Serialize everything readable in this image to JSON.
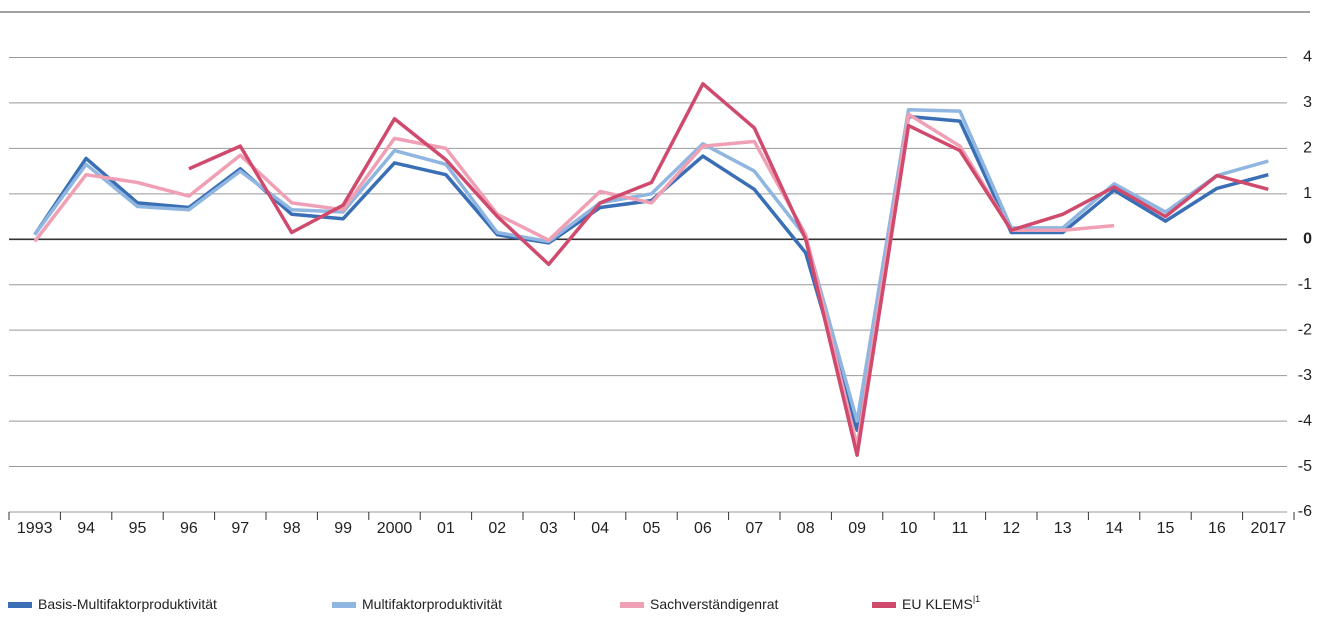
{
  "chart_data": {
    "type": "line",
    "categories": [
      "1993",
      "94",
      "95",
      "96",
      "97",
      "98",
      "99",
      "2000",
      "01",
      "02",
      "03",
      "04",
      "05",
      "06",
      "07",
      "08",
      "09",
      "10",
      "11",
      "12",
      "13",
      "14",
      "15",
      "16",
      "2017"
    ],
    "series": [
      {
        "name": "Basis-Multifaktorproduktivität",
        "color": "#3a6fb5",
        "values": [
          0.1,
          1.78,
          0.8,
          0.7,
          1.55,
          0.55,
          0.45,
          1.68,
          1.42,
          0.1,
          -0.08,
          0.7,
          0.85,
          1.83,
          1.1,
          -0.3,
          -4.2,
          2.7,
          2.6,
          0.15,
          0.15,
          1.08,
          0.4,
          1.12,
          1.42
        ]
      },
      {
        "name": "Multifaktorproduktivität",
        "color": "#8fb6e0",
        "values": [
          0.1,
          1.65,
          0.72,
          0.65,
          1.5,
          0.65,
          0.6,
          1.95,
          1.65,
          0.15,
          -0.05,
          0.8,
          1.0,
          2.1,
          1.5,
          0.05,
          -4.0,
          2.85,
          2.82,
          0.25,
          0.25,
          1.22,
          0.6,
          1.4,
          1.72
        ]
      },
      {
        "name": "Sachverständigenrat",
        "color": "#f0a0b4",
        "values": [
          -0.05,
          1.42,
          1.25,
          0.95,
          1.85,
          0.8,
          0.65,
          2.22,
          2.0,
          0.55,
          -0.02,
          1.05,
          0.8,
          2.05,
          2.15,
          0.1,
          -4.55,
          2.75,
          2.05,
          0.2,
          0.2,
          0.3,
          null,
          null,
          null
        ]
      },
      {
        "name": "EU KLEMS",
        "footnote": "|1",
        "color": "#d04a6e",
        "values": [
          null,
          null,
          null,
          1.55,
          2.05,
          0.15,
          0.75,
          2.65,
          1.75,
          0.5,
          -0.55,
          0.8,
          1.25,
          3.42,
          2.45,
          0.0,
          -4.75,
          2.5,
          1.95,
          0.2,
          0.55,
          1.15,
          0.5,
          1.4,
          1.1
        ]
      }
    ],
    "ylim": [
      -6,
      5
    ],
    "yticks": [
      -6,
      -5,
      -4,
      -3,
      -2,
      -1,
      0,
      1,
      2,
      3,
      4
    ],
    "grid": true
  }
}
